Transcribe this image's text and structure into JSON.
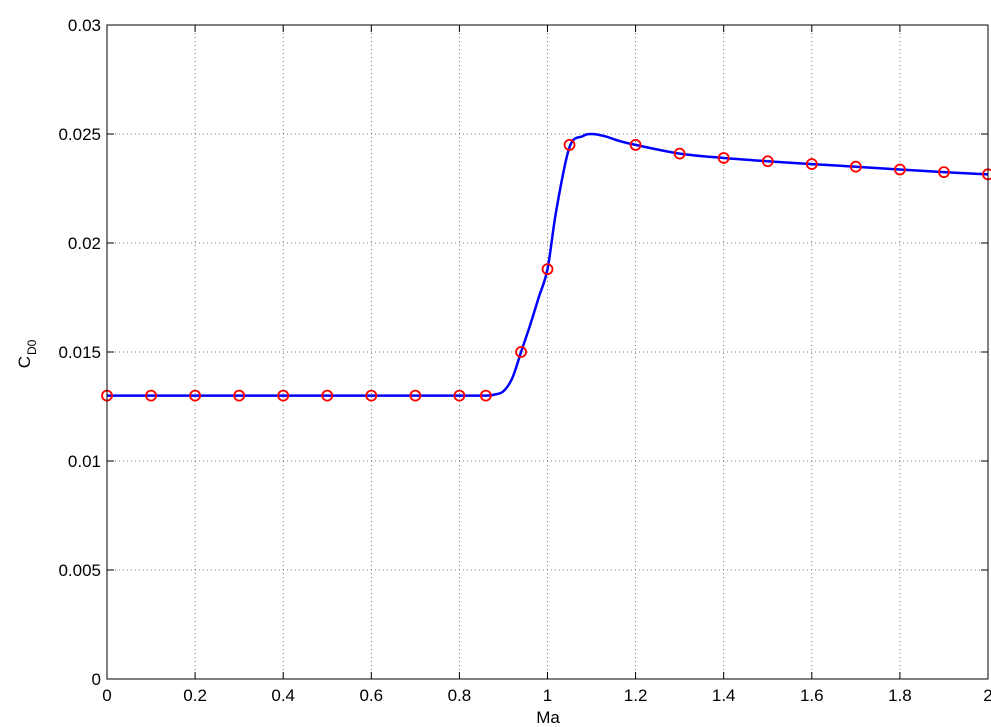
{
  "chart_data": {
    "type": "line",
    "xlabel": "Ma",
    "ylabel_main": "C",
    "ylabel_sub": "D0",
    "xlim": [
      0,
      2
    ],
    "ylim": [
      0,
      0.03
    ],
    "grid": true,
    "x_ticks": [
      0,
      0.2,
      0.4,
      0.6,
      0.8,
      1,
      1.2,
      1.4,
      1.6,
      1.8,
      2
    ],
    "x_tick_labels": [
      "0",
      "0.2",
      "0.4",
      "0.6",
      "0.8",
      "1",
      "1.2",
      "1.4",
      "1.6",
      "1.8",
      "2"
    ],
    "y_ticks": [
      0,
      0.005,
      0.01,
      0.015,
      0.02,
      0.025,
      0.03
    ],
    "y_tick_labels": [
      "0",
      "0.005",
      "0.01",
      "0.015",
      "0.02",
      "0.025",
      "0.03"
    ],
    "series": [
      {
        "kind": "curve",
        "color": "#0000ff",
        "x": [
          0,
          0.1,
          0.2,
          0.3,
          0.4,
          0.5,
          0.6,
          0.7,
          0.8,
          0.86,
          0.88,
          0.9,
          0.92,
          0.94,
          0.96,
          0.98,
          1.0,
          1.02,
          1.05,
          1.08,
          1.1,
          1.13,
          1.16,
          1.2,
          1.3,
          1.4,
          1.5,
          1.6,
          1.7,
          1.8,
          1.9,
          2.0
        ],
        "y": [
          0.013,
          0.013,
          0.013,
          0.013,
          0.013,
          0.013,
          0.013,
          0.013,
          0.013,
          0.013,
          0.01305,
          0.0132,
          0.0138,
          0.015,
          0.0162,
          0.0175,
          0.0188,
          0.0215,
          0.0244,
          0.0249,
          0.025,
          0.0249,
          0.0247,
          0.0245,
          0.0241,
          0.0239,
          0.02375,
          0.02362,
          0.0235,
          0.02337,
          0.02325,
          0.02315
        ]
      },
      {
        "kind": "markers",
        "color": "#ff0000",
        "x": [
          0,
          0.1,
          0.2,
          0.3,
          0.4,
          0.5,
          0.6,
          0.7,
          0.8,
          0.86,
          0.94,
          1.0,
          1.05,
          1.2,
          1.3,
          1.4,
          1.5,
          1.6,
          1.7,
          1.8,
          1.9,
          2.0
        ],
        "y": [
          0.013,
          0.013,
          0.013,
          0.013,
          0.013,
          0.013,
          0.013,
          0.013,
          0.013,
          0.013,
          0.015,
          0.0188,
          0.0245,
          0.0245,
          0.0241,
          0.0239,
          0.02375,
          0.02362,
          0.0235,
          0.02337,
          0.02325,
          0.02315
        ]
      }
    ]
  }
}
